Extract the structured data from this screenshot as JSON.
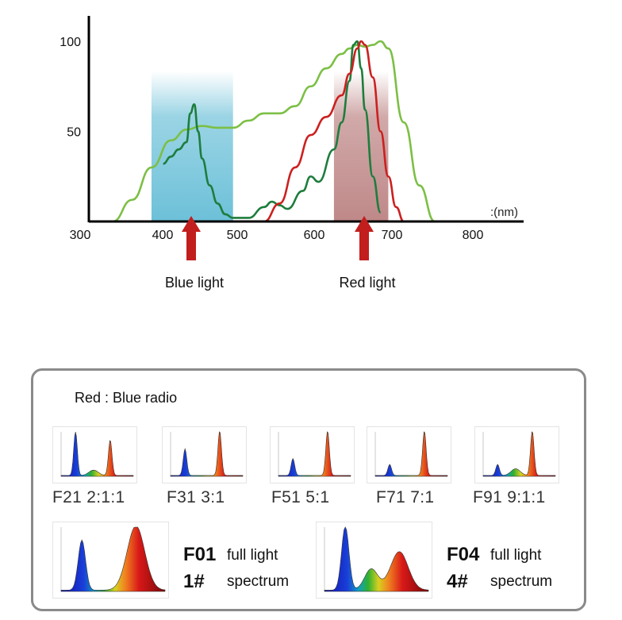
{
  "chart_data": {
    "type": "line",
    "xlabel": ":(nm)",
    "x_ticks": [
      300,
      400,
      500,
      600,
      700,
      800
    ],
    "y_ticks": [
      50,
      100
    ],
    "xlim": [
      300,
      860
    ],
    "ylim": [
      0,
      105
    ],
    "bands": [
      {
        "x_start": 395,
        "x_end": 500,
        "color": "#79c6dc"
      },
      {
        "x_start": 630,
        "x_end": 700,
        "color": "#b87b7b"
      }
    ],
    "annotations": [
      {
        "text": "Blue light",
        "arrow_at": 440
      },
      {
        "text": "Red light",
        "arrow_at": 665
      }
    ],
    "series": [
      {
        "color": "#7cbf45",
        "x": [
          345,
          370,
          395,
          420,
          440,
          460,
          480,
          500,
          520,
          540,
          560,
          580,
          600,
          620,
          640,
          650,
          660,
          670,
          680,
          690,
          700,
          720,
          740,
          760
        ],
        "y": [
          0,
          12,
          30,
          45,
          51,
          53,
          52,
          52,
          56,
          60,
          60,
          64,
          75,
          85,
          93,
          96,
          98,
          97,
          98,
          100,
          96,
          55,
          20,
          0
        ]
      },
      {
        "color": "#1e7d3d",
        "x": [
          410,
          420,
          430,
          440,
          445,
          450,
          455,
          460,
          470,
          480,
          490,
          500,
          520,
          540,
          550,
          560,
          570,
          590,
          600,
          610,
          630,
          640,
          650,
          655,
          660,
          665,
          670,
          680,
          690
        ],
        "y": [
          32,
          36,
          40,
          44,
          60,
          65,
          50,
          35,
          20,
          10,
          4,
          2,
          2,
          8,
          11,
          9,
          7,
          17,
          25,
          22,
          40,
          55,
          78,
          98,
          100,
          85,
          62,
          25,
          5
        ]
      },
      {
        "color": "#cc2020",
        "x": [
          540,
          560,
          580,
          600,
          620,
          640,
          650,
          660,
          665,
          670,
          680,
          690,
          700,
          710,
          720
        ],
        "y": [
          0,
          10,
          30,
          48,
          58,
          70,
          82,
          96,
          100,
          98,
          80,
          50,
          25,
          8,
          0
        ]
      }
    ]
  },
  "panel": {
    "title": "Red : Blue radio",
    "small": [
      {
        "label": "F21  2:1:1",
        "blue": 1.0,
        "mid": 0.12,
        "red": 0.8
      },
      {
        "label": "F31  3:1",
        "blue": 0.6,
        "mid": 0.0,
        "red": 1.0
      },
      {
        "label": "F51  5:1",
        "blue": 0.38,
        "mid": 0.0,
        "red": 1.0
      },
      {
        "label": "F71  7:1",
        "blue": 0.25,
        "mid": 0.0,
        "red": 1.0
      },
      {
        "label": "F91  9:1:1",
        "blue": 0.25,
        "mid": 0.15,
        "red": 1.0
      }
    ],
    "large": [
      {
        "code": "F01",
        "num": "1#",
        "desc1": "full light",
        "desc2": "spectrum",
        "blue": 0.78,
        "mid": 0.0,
        "red": 1.0
      },
      {
        "code": "F04",
        "num": "4#",
        "desc1": "full light",
        "desc2": "spectrum",
        "blue": 1.0,
        "mid": 0.33,
        "red": 0.6
      }
    ]
  }
}
